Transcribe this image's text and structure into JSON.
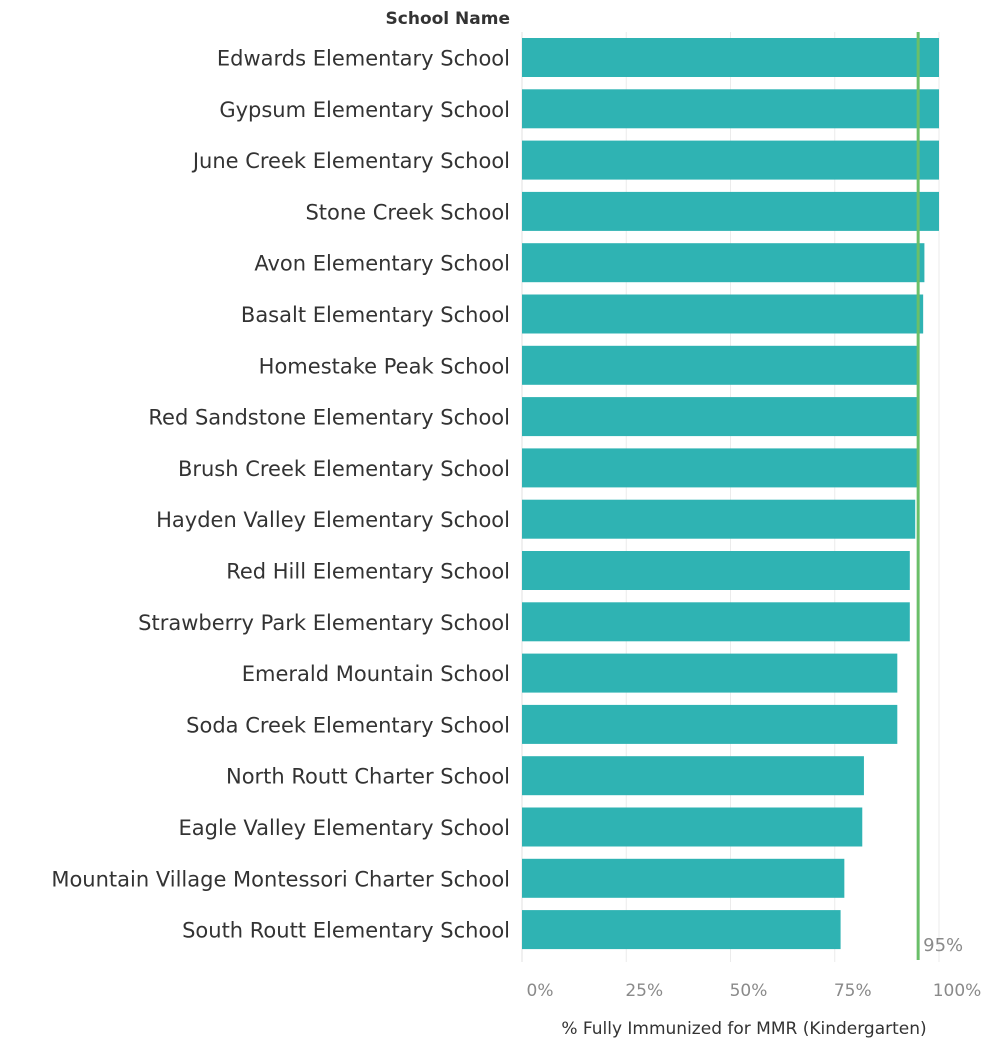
{
  "chart_data": {
    "type": "bar",
    "orientation": "horizontal",
    "category_header": "School Name",
    "xlabel": "% Fully Immunized for MMR (Kindergarten)",
    "xlim": [
      0,
      1
    ],
    "x_ticks": [
      {
        "value": 0,
        "label": "0%"
      },
      {
        "value": 0.25,
        "label": "25%"
      },
      {
        "value": 0.5,
        "label": "50%"
      },
      {
        "value": 0.75,
        "label": "75%"
      },
      {
        "value": 1,
        "label": "100%"
      }
    ],
    "grid": true,
    "categories": [
      "Edwards Elementary School",
      "Gypsum Elementary School",
      "June Creek Elementary School",
      "Stone Creek School",
      "Avon Elementary School",
      "Basalt Elementary School",
      "Homestake Peak School",
      "Red Sandstone Elementary School",
      "Brush Creek Elementary School",
      "Hayden Valley Elementary School",
      "Red Hill Elementary School",
      "Strawberry Park Elementary School",
      "Emerald Mountain School",
      "Soda Creek Elementary School",
      "North Routt Charter School",
      "Eagle Valley Elementary School",
      "Mountain Village Montessori Charter School",
      "South Routt Elementary School"
    ],
    "values": [
      1.0,
      1.0,
      1.0,
      1.0,
      0.965,
      0.962,
      0.951,
      0.951,
      0.95,
      0.943,
      0.93,
      0.93,
      0.9,
      0.9,
      0.82,
      0.816,
      0.773,
      0.764
    ],
    "reference_line": {
      "value": 0.95,
      "label": "95%",
      "color": "#6abf69"
    },
    "bar_color": "#2fb3b3",
    "grid_color": "#ebebeb"
  }
}
